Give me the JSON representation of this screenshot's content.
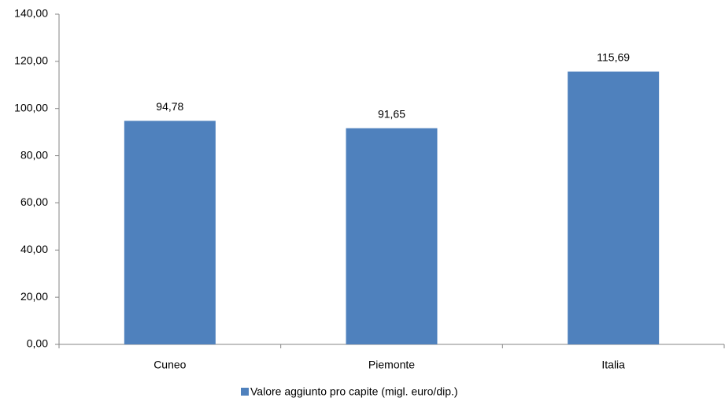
{
  "chart_data": {
    "type": "bar",
    "categories": [
      "Cuneo",
      "Piemonte",
      "Italia"
    ],
    "series": [
      {
        "name": "Valore aggiunto pro capite (migl. euro/dip.)",
        "color": "#4f81bd",
        "values": [
          94.78,
          91.65,
          115.69
        ],
        "value_labels": [
          "94,78",
          "91,65",
          "115,69"
        ]
      }
    ],
    "ylim": [
      0,
      140
    ],
    "yticks": [
      {
        "value": 0,
        "label": "0,00"
      },
      {
        "value": 20,
        "label": "20,00"
      },
      {
        "value": 40,
        "label": "40,00"
      },
      {
        "value": 60,
        "label": "60,00"
      },
      {
        "value": 80,
        "label": "80,00"
      },
      {
        "value": 100,
        "label": "100,00"
      },
      {
        "value": 120,
        "label": "120,00"
      },
      {
        "value": 140,
        "label": "140,00"
      }
    ],
    "grid": false,
    "legend": "bottom"
  }
}
